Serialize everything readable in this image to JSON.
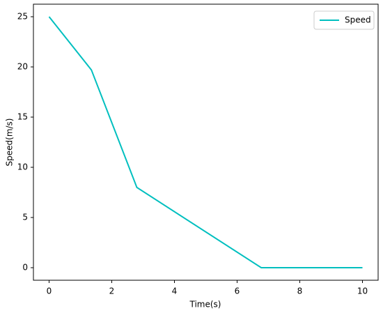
{
  "chart_data": {
    "type": "line",
    "x_label": "Time(s)",
    "y_label": "Speed(m/s)",
    "x": [
      0,
      1.35,
      2.8,
      6.77,
      10
    ],
    "series": [
      {
        "name": "Speed",
        "color": "#00bfbf",
        "values": [
          25,
          19.7,
          8,
          0,
          0
        ]
      }
    ],
    "xlim": [
      -0.5,
      10.5
    ],
    "xticks": [
      0,
      2,
      4,
      6,
      8,
      10
    ],
    "ylim": [
      -1.25,
      26.25
    ],
    "yticks": [
      0,
      5,
      10,
      15,
      20,
      25
    ],
    "legend": "upper right"
  }
}
